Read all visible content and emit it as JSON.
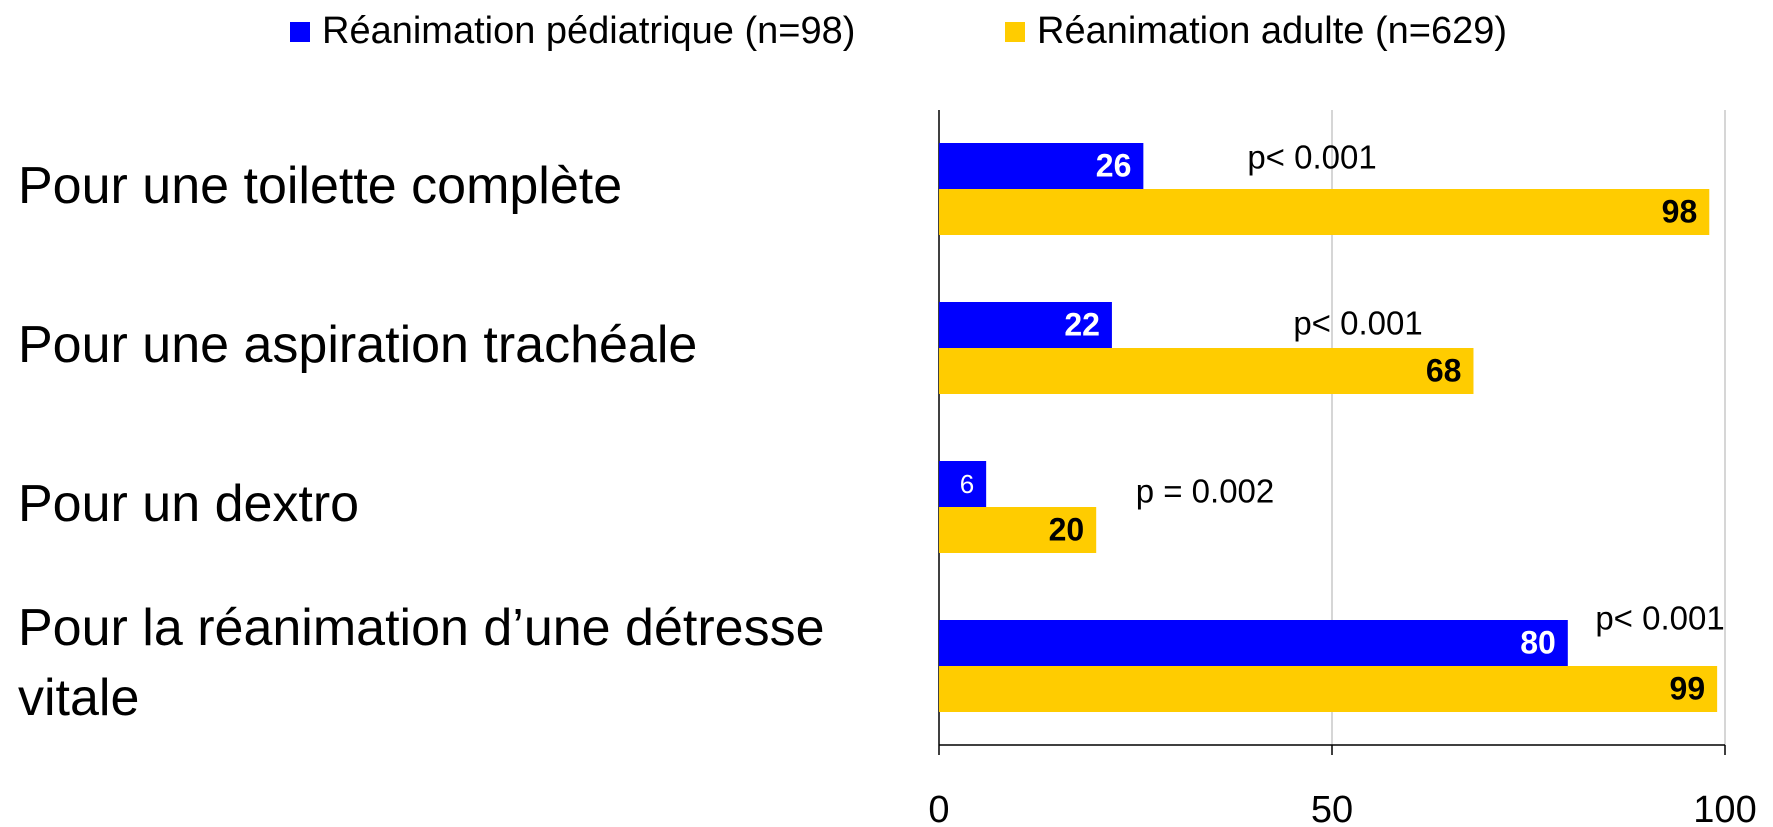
{
  "chart_data": {
    "type": "hbar",
    "categories": [
      "Pour une toilette complète",
      "Pour une aspiration trachéale",
      "Pour un dextro",
      "Pour la réanimation d’une détresse vitale"
    ],
    "series": [
      {
        "name": "Réanimation pédiatrique (n=98)",
        "color": "#0000ff",
        "values": [
          26,
          22,
          6,
          80
        ]
      },
      {
        "name": "Réanimation adulte (n=629)",
        "color": "#ffcc00",
        "values": [
          98,
          68,
          20,
          99
        ]
      }
    ],
    "annotations": [
      "p< 0.001",
      "p< 0.001",
      "p = 0.002",
      "p< 0.001"
    ],
    "xlim": [
      0,
      100
    ],
    "xticks": [
      0,
      50,
      100
    ],
    "grid": true,
    "legend": "top"
  }
}
